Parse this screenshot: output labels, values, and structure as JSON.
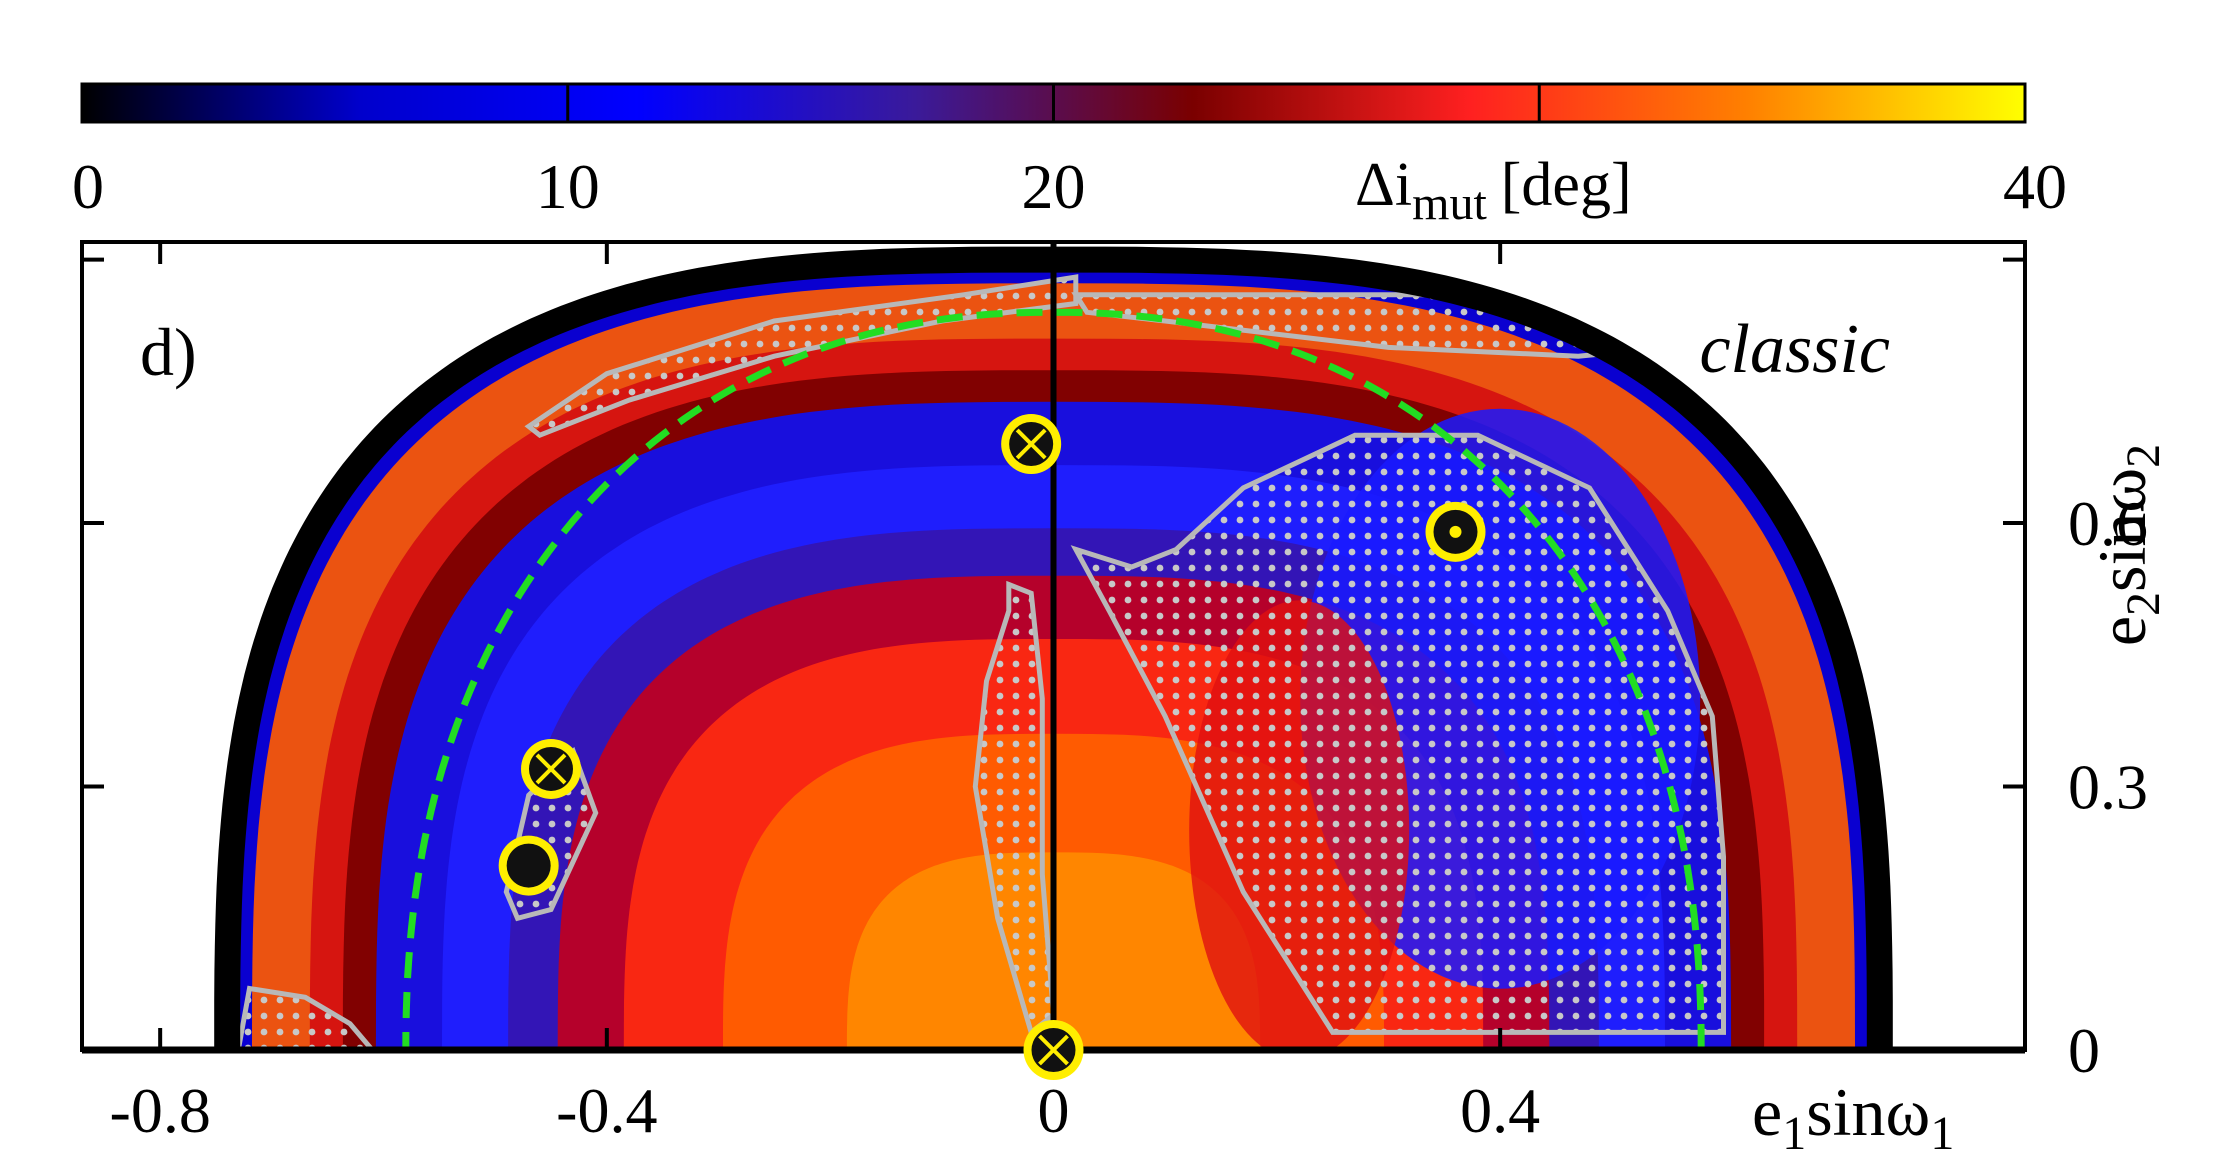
{
  "chart_data": {
    "type": "heatmap",
    "panel_label": "d)",
    "annotation": "classic",
    "x_axis": {
      "label": "e",
      "label_sub": "1",
      "label_mid": "sinω",
      "label_sub2": "1",
      "range": [
        -0.87,
        0.87
      ],
      "ticks": [
        -0.8,
        -0.4,
        0,
        0.4
      ],
      "tick_labels": [
        "-0.8",
        "-0.4",
        "0",
        "0.4"
      ]
    },
    "y_axis": {
      "label": "e",
      "label_sub": "2",
      "label_mid": "sinω",
      "label_sub2": "2",
      "range": [
        0,
        0.92
      ],
      "ticks": [
        0,
        0.3,
        0.6
      ],
      "tick_labels": [
        "0",
        "0.3",
        "0.6"
      ],
      "position": "right"
    },
    "colorbar": {
      "label_main": "Δi",
      "label_sub": "mut",
      "label_unit": "[deg]",
      "range": [
        0,
        40
      ],
      "tick_labels": [
        "0",
        "10",
        "20",
        "40"
      ],
      "tick_positions": [
        0,
        10,
        20,
        40
      ],
      "colors": [
        "#000000",
        "#0000cc",
        "#0000ff",
        "#3a1a9a",
        "#7a0000",
        "#ff2020",
        "#ff8000",
        "#ffff00"
      ]
    },
    "boundary": {
      "a": 0.74,
      "b": 0.9,
      "exponent": 3,
      "color": "#000000"
    },
    "dashed_curve": {
      "a": 0.58,
      "b": 0.84,
      "exponent": 2.2,
      "color": "#22dd22"
    },
    "vertical_line_x": 0,
    "markers": [
      {
        "type": "crossed-circle",
        "x": -0.02,
        "y": 0.69
      },
      {
        "type": "crossed-circle",
        "x": -0.45,
        "y": 0.32
      },
      {
        "type": "filled-circle",
        "x": -0.47,
        "y": 0.21
      },
      {
        "type": "crossed-circle",
        "x": 0.0,
        "y": 0.0
      },
      {
        "type": "dotted-circle",
        "x": 0.36,
        "y": 0.59
      }
    ],
    "stable_regions": [
      {
        "name": "top-arc-region",
        "points": [
          [
            -0.47,
            0.71
          ],
          [
            -0.4,
            0.77
          ],
          [
            -0.25,
            0.83
          ],
          [
            -0.08,
            0.86
          ],
          [
            0.02,
            0.88
          ],
          [
            0.02,
            0.85
          ],
          [
            -0.1,
            0.83
          ],
          [
            -0.25,
            0.79
          ],
          [
            -0.38,
            0.74
          ],
          [
            -0.46,
            0.7
          ]
        ]
      },
      {
        "name": "top-right-strip",
        "points": [
          [
            0.02,
            0.86
          ],
          [
            0.2,
            0.86
          ],
          [
            0.36,
            0.86
          ],
          [
            0.47,
            0.84
          ],
          [
            0.55,
            0.8
          ],
          [
            0.47,
            0.79
          ],
          [
            0.3,
            0.8
          ],
          [
            0.1,
            0.83
          ],
          [
            0.03,
            0.84
          ]
        ]
      },
      {
        "name": "center-strip",
        "points": [
          [
            -0.04,
            0.53
          ],
          [
            -0.02,
            0.52
          ],
          [
            -0.01,
            0.4
          ],
          [
            -0.01,
            0.2
          ],
          [
            0.0,
            0.04
          ],
          [
            -0.02,
            0.02
          ],
          [
            -0.05,
            0.15
          ],
          [
            -0.07,
            0.3
          ],
          [
            -0.06,
            0.42
          ],
          [
            -0.04,
            0.5
          ]
        ]
      },
      {
        "name": "right-lobe",
        "points": [
          [
            0.02,
            0.57
          ],
          [
            0.07,
            0.55
          ],
          [
            0.11,
            0.57
          ],
          [
            0.17,
            0.64
          ],
          [
            0.27,
            0.7
          ],
          [
            0.38,
            0.7
          ],
          [
            0.48,
            0.64
          ],
          [
            0.55,
            0.5
          ],
          [
            0.59,
            0.38
          ],
          [
            0.6,
            0.22
          ],
          [
            0.6,
            0.02
          ],
          [
            0.25,
            0.02
          ],
          [
            0.17,
            0.18
          ],
          [
            0.1,
            0.38
          ],
          [
            0.05,
            0.5
          ]
        ]
      },
      {
        "name": "left-small-region",
        "points": [
          [
            -0.49,
            0.18
          ],
          [
            -0.47,
            0.29
          ],
          [
            -0.43,
            0.34
          ],
          [
            -0.41,
            0.27
          ],
          [
            -0.45,
            0.16
          ],
          [
            -0.48,
            0.15
          ]
        ]
      },
      {
        "name": "bottom-left-corner",
        "points": [
          [
            -0.73,
            0.0
          ],
          [
            -0.72,
            0.07
          ],
          [
            -0.67,
            0.06
          ],
          [
            -0.63,
            0.03
          ],
          [
            -0.61,
            0.0
          ]
        ]
      }
    ]
  }
}
